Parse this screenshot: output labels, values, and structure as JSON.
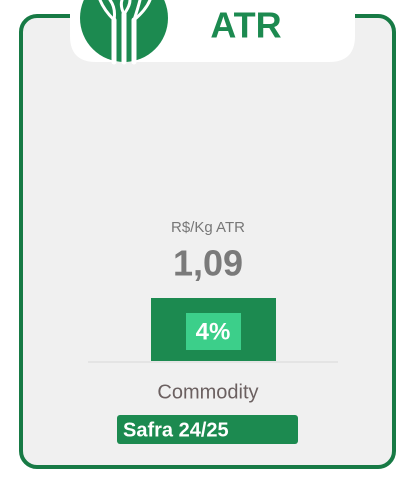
{
  "header": {
    "title": "ATR"
  },
  "metric": {
    "unit": "R$/Kg ATR",
    "value": "1,09",
    "change": "4%"
  },
  "footer": {
    "label": "Commodity",
    "badge": "Safra 24/25"
  }
}
